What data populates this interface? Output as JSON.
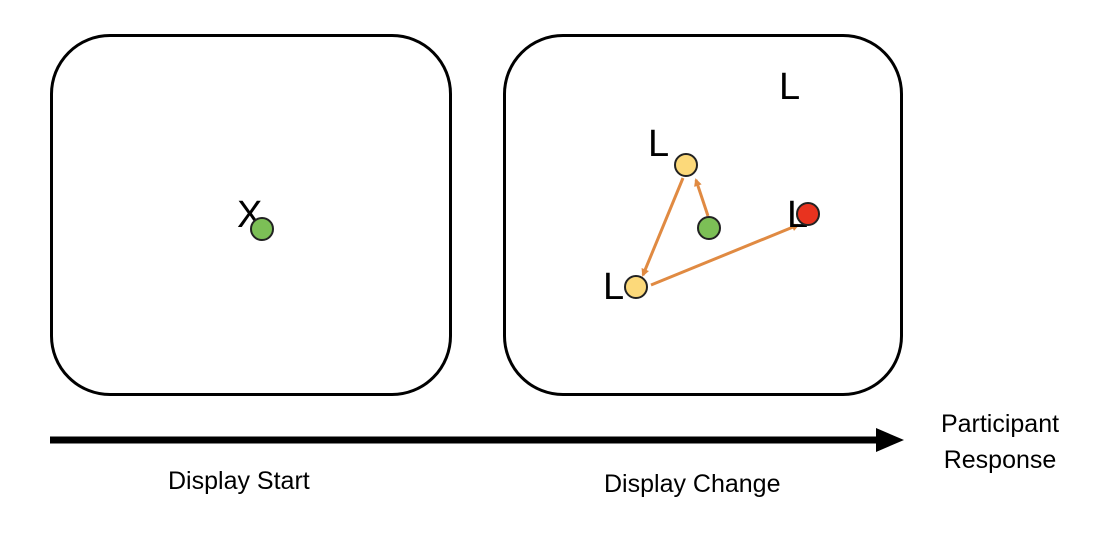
{
  "panels": {
    "start": {
      "caption": "Display Start",
      "center_letter": "X"
    },
    "change": {
      "caption": "Display Change",
      "letters": [
        "L",
        "L",
        "L",
        "L"
      ]
    }
  },
  "timeline": {
    "end_label": "Participant Response"
  },
  "colors": {
    "fixation_dot": "#7cbf56",
    "visited_dot": "#fcd97a",
    "target_dot": "#e8331f",
    "saccade_arrow": "#e08a42",
    "panel_border": "#000000",
    "timeline": "#000000"
  }
}
